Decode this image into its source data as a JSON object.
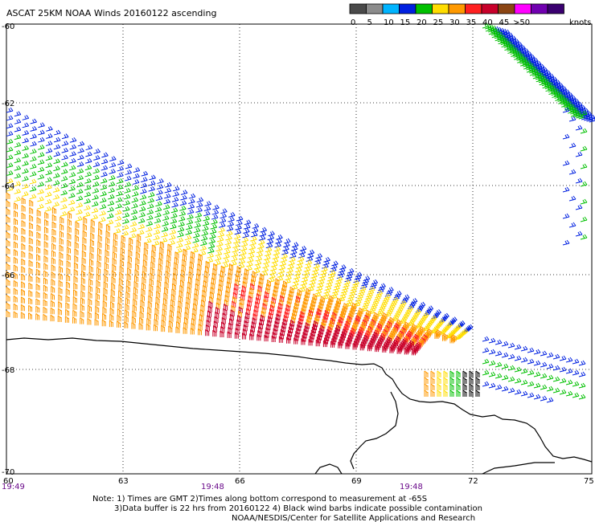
{
  "title": "ASCAT 25KM NOAA Winds 20160122 ascending",
  "legend": {
    "unit_label": "knots",
    "bins": [
      {
        "label": "0",
        "color": "#4a4a4a"
      },
      {
        "label": "5",
        "color": "#8c8c8c"
      },
      {
        "label": "10",
        "color": "#00b4ff"
      },
      {
        "label": "15",
        "color": "#0020e0"
      },
      {
        "label": "20",
        "color": "#00c000"
      },
      {
        "label": "25",
        "color": "#ffdd00"
      },
      {
        "label": "30",
        "color": "#ff9900"
      },
      {
        "label": "35",
        "color": "#ff2020"
      },
      {
        "label": "40",
        "color": "#c8002a"
      },
      {
        "label": "45",
        "color": "#8b4513"
      },
      {
        "label": ">50",
        "color": "#ff00ff"
      },
      {
        "label": "",
        "color": "#7000b0"
      },
      {
        "label": "",
        "color": "#3a0070"
      }
    ]
  },
  "axes": {
    "lon_labels": [
      "60",
      "63",
      "66",
      "69",
      "72",
      "75"
    ],
    "lat_labels": [
      "-60",
      "-62",
      "-64",
      "-66",
      "-68",
      "-70"
    ],
    "time_labels": [
      "19:49",
      "19:48",
      "19:48"
    ]
  },
  "notes": {
    "line1": "Note: 1) Times are GMT 2)Times along bottom correspond to measurement at -65S",
    "line2": "3)Data buffer is 22 hrs from 20160122 4) Black wind barbs indicate possible contamination",
    "line3": "NOAA/NESDIS/Center for Satellite Applications and Research"
  },
  "colors": {
    "blue": "#0020e0",
    "green": "#00c000",
    "yellow": "#ffdd00",
    "orange": "#ff9900",
    "red": "#ff2020",
    "crimson": "#c8002a",
    "coast": "#000000",
    "grid": "#000000"
  }
}
